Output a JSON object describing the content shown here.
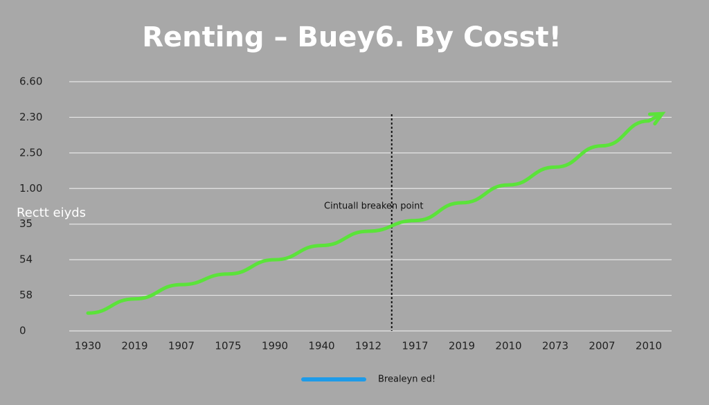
{
  "chart_data": {
    "type": "line",
    "title": "Renting – Buey6. By Cosst!",
    "y_label": "Rectt eiyds",
    "annotation": "Cintuall breaken point",
    "categories": [
      "1930",
      "2019",
      "1907",
      "1075",
      "1990",
      "1940",
      "1912",
      "1917",
      "2019",
      "2010",
      "2073",
      "2007",
      "2010"
    ],
    "series": [
      {
        "name": "Brealeyn ed!",
        "color": "#5be33a",
        "legend_color": "#1e9be8",
        "values": [
          0.5,
          0.9,
          1.3,
          1.6,
          2.0,
          2.4,
          2.8,
          3.1,
          3.6,
          4.1,
          4.6,
          5.2,
          5.9
        ]
      }
    ],
    "ylim": [
      0,
      7
    ],
    "yticks": [
      0,
      {
        "value": 1,
        "label": "58"
      },
      {
        "value": 2,
        "label": "54"
      },
      {
        "value": 3,
        "label": "35"
      },
      {
        "value": 4,
        "label": "1.00"
      },
      {
        "value": 5,
        "label": "2.50"
      },
      {
        "value": 6,
        "label": "2.30"
      },
      {
        "value": 7,
        "label": "6.60"
      }
    ],
    "grid": true
  }
}
